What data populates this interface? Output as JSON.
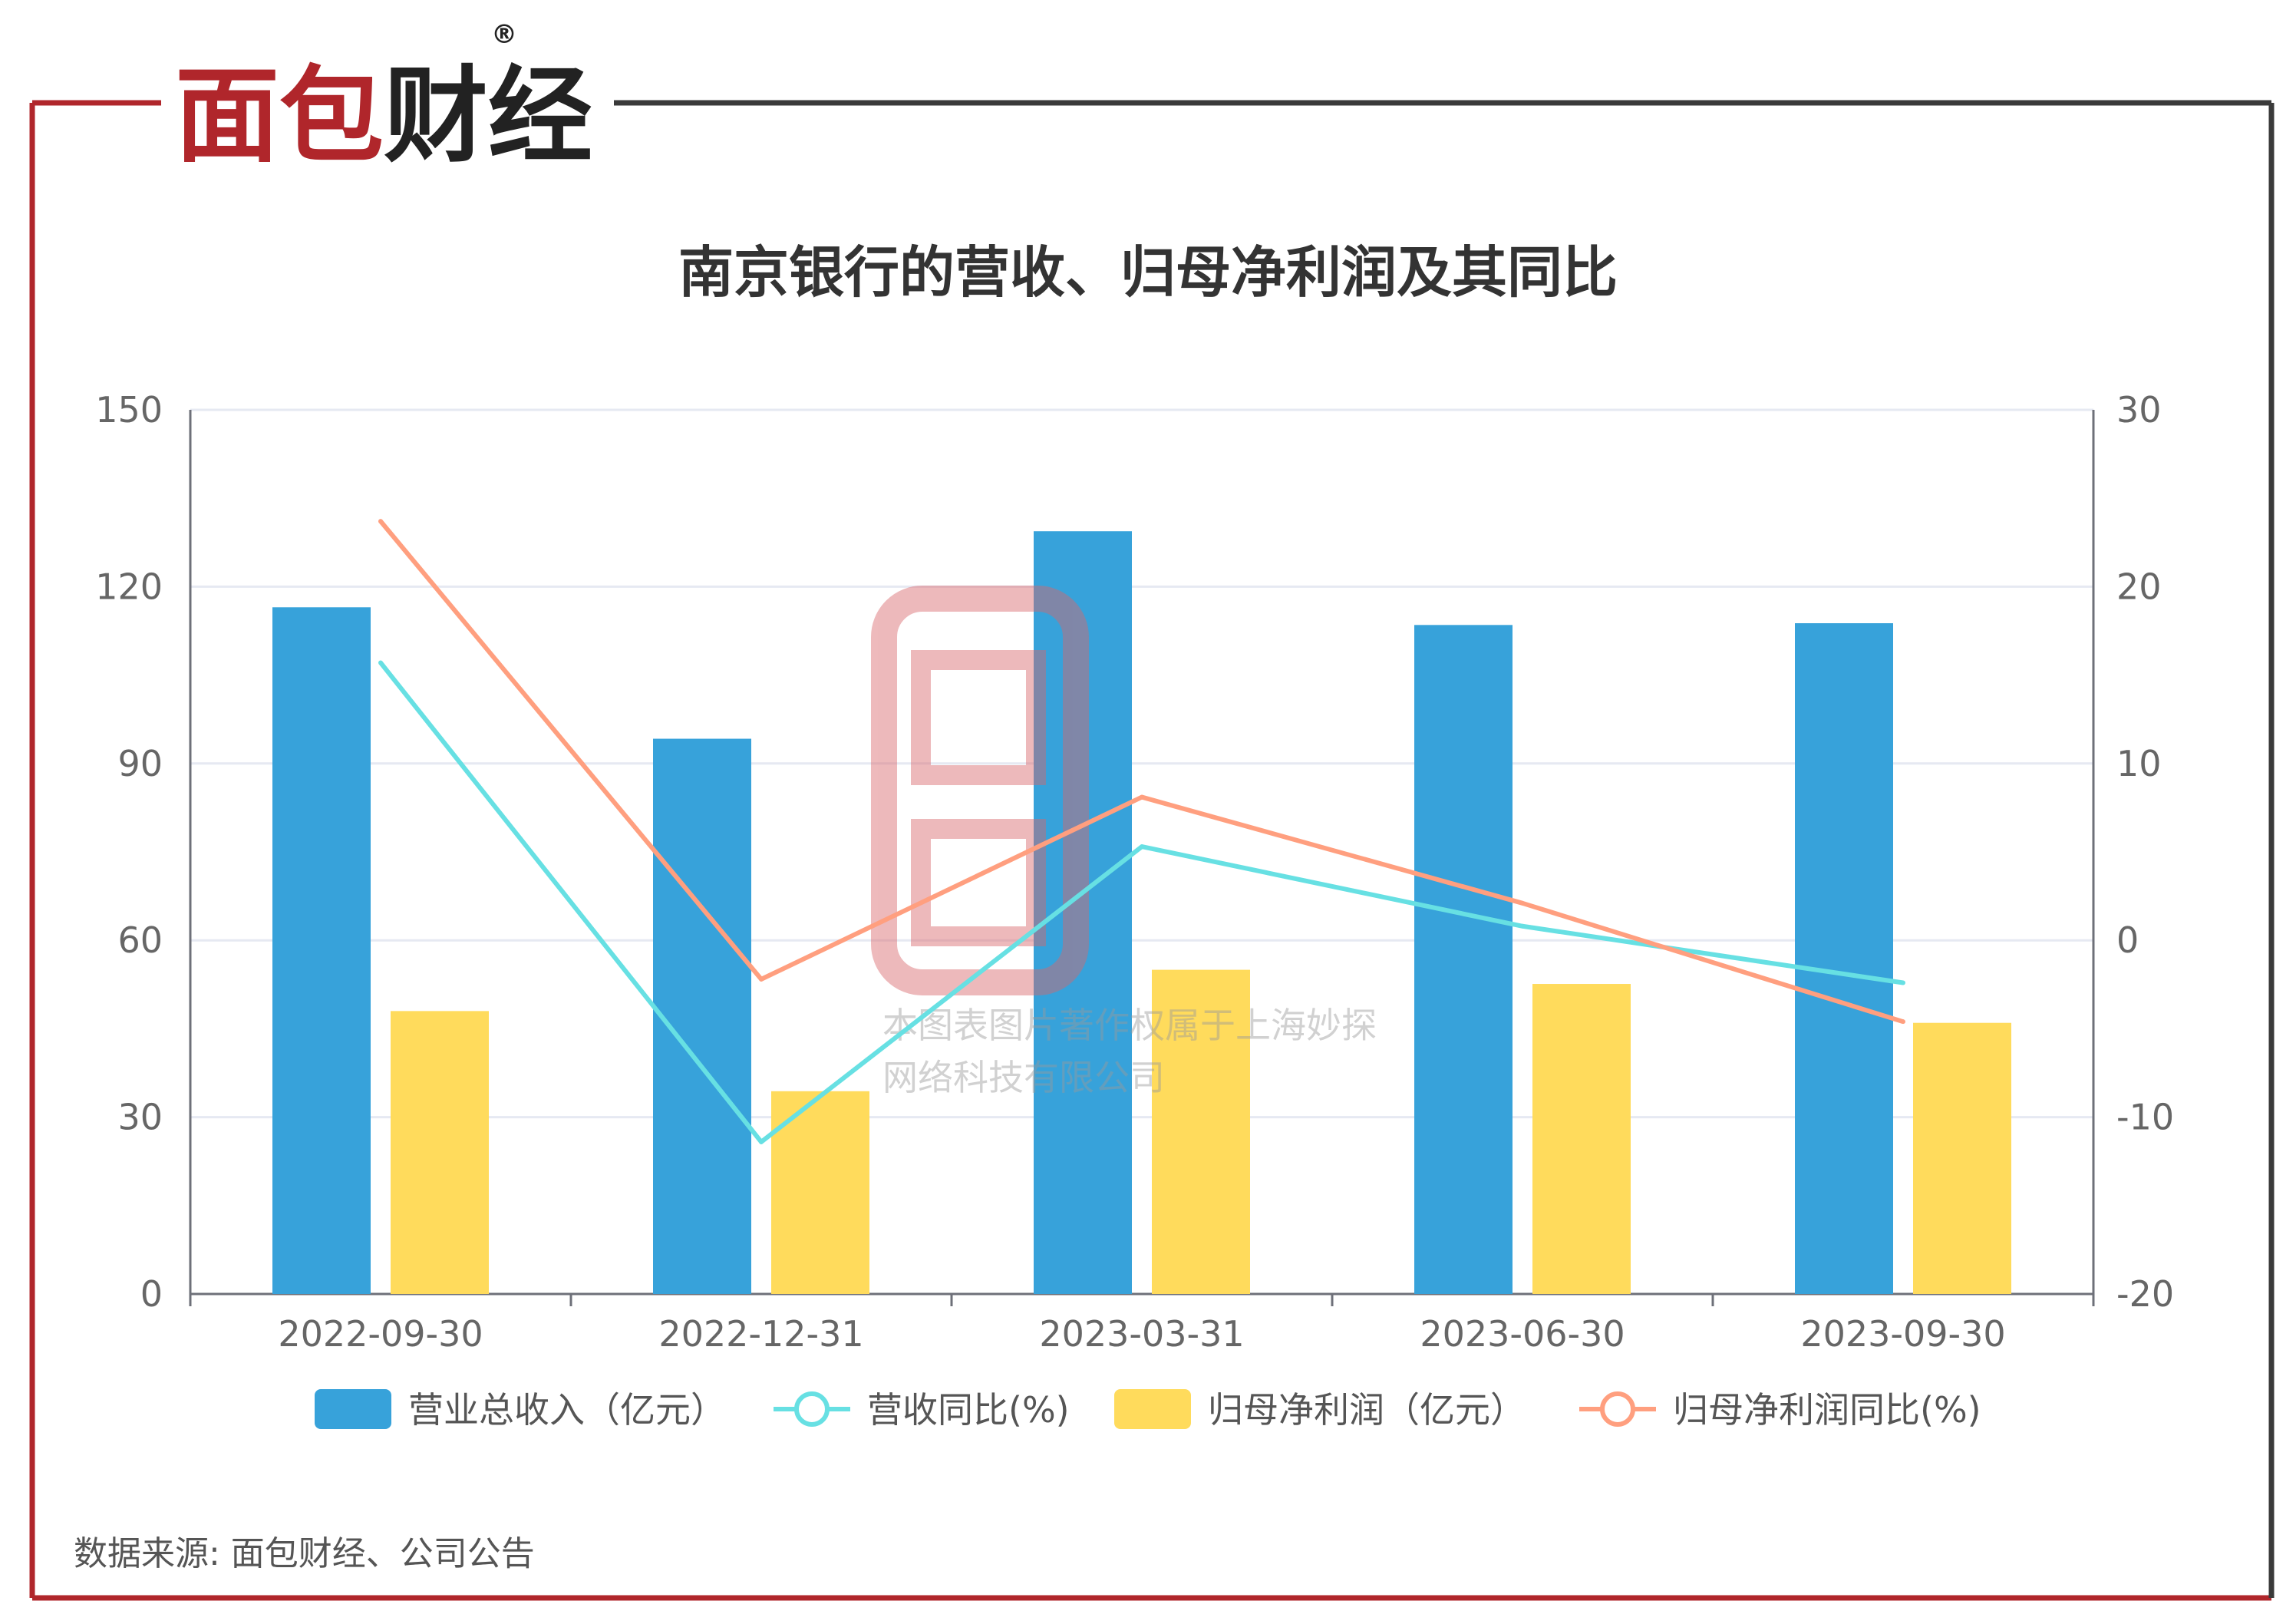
{
  "brand": {
    "logo_text": "面包财经",
    "reg_mark": "®",
    "red": "#B0262B",
    "dark": "#3a3a3a"
  },
  "watermark": {
    "line1": "本图表图片著作权属于上海妙探",
    "line2": "网络科技有限公司"
  },
  "source_text": "数据来源: 面包财经、公司公告",
  "chart_data": {
    "type": "bar",
    "title": "南京银行的营收、归母净利润及其同比",
    "categories": [
      "2022-09-30",
      "2022-12-31",
      "2023-03-31",
      "2023-06-30",
      "2023-09-30"
    ],
    "y_left": {
      "ylim": [
        0,
        150
      ],
      "ticks": [
        0,
        30,
        60,
        90,
        120,
        150
      ]
    },
    "y_right": {
      "ylim": [
        -20,
        30
      ],
      "ticks": [
        -20,
        -10,
        0,
        10,
        20,
        30
      ]
    },
    "grid": true,
    "legend_position": "bottom",
    "series": [
      {
        "name": "营业总收入（亿元）",
        "type": "bar",
        "axis": "left",
        "color": "#37A2DA",
        "values": [
          116.5,
          94.2,
          129.4,
          113.5,
          113.8
        ]
      },
      {
        "name": "营收同比(%)",
        "type": "line",
        "axis": "right",
        "color": "#67E0E3",
        "values": [
          15.7,
          -11.4,
          5.3,
          0.8,
          -2.4
        ]
      },
      {
        "name": "归母净利润（亿元）",
        "type": "bar",
        "axis": "left",
        "color": "#FFDB5C",
        "values": [
          48.0,
          34.4,
          55.0,
          52.6,
          46.0
        ]
      },
      {
        "name": "归母净利润同比(%)",
        "type": "line",
        "axis": "right",
        "color": "#FF9F7F",
        "values": [
          23.7,
          -2.2,
          8.1,
          2.1,
          -4.6
        ]
      }
    ]
  }
}
